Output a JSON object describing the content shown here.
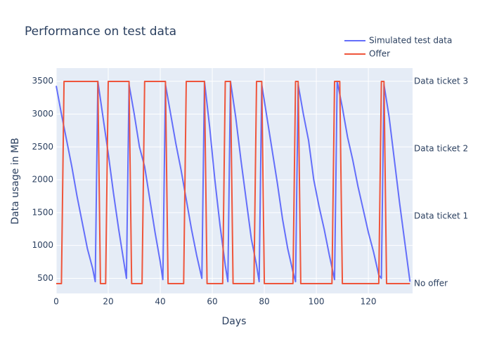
{
  "chart_data": {
    "type": "line",
    "title": "Performance on test data",
    "x_label": "Days",
    "y_label": "Data usage in MB",
    "xlim": [
      0,
      137
    ],
    "xticks": [
      0,
      20,
      40,
      60,
      80,
      100,
      120
    ],
    "ylim": [
      270,
      3700
    ],
    "yticks": [
      500,
      1000,
      1500,
      2000,
      2500,
      3000,
      3500
    ],
    "y2lim": [
      -0.146,
      3.198
    ],
    "y2ticks": [
      {
        "value": 0,
        "label": "No offer"
      },
      {
        "value": 1,
        "label": "Data ticket 1"
      },
      {
        "value": 2,
        "label": "Data ticket 2"
      },
      {
        "value": 3,
        "label": "Data ticket 3"
      }
    ],
    "grid": true,
    "legend": "top-right",
    "series": [
      {
        "name": "Simulated test data",
        "color": "#636efa",
        "x": [
          0,
          2,
          4,
          6,
          8,
          10,
          12,
          14,
          15,
          16,
          18,
          20,
          22,
          24,
          26,
          27,
          28,
          30,
          32,
          34,
          36,
          38,
          40,
          41,
          42,
          44,
          46,
          48,
          50,
          52,
          54,
          56,
          57,
          59,
          61,
          63,
          65,
          66,
          67,
          69,
          71,
          73,
          75,
          77,
          78,
          79,
          81,
          83,
          85,
          87,
          89,
          91,
          92,
          93,
          95,
          97,
          99,
          101,
          103,
          105,
          107,
          108,
          110,
          112,
          114,
          116,
          118,
          120,
          122,
          124,
          125,
          126,
          128,
          130,
          132,
          134,
          136
        ],
        "values": [
          3430,
          3000,
          2600,
          2200,
          1750,
          1350,
          950,
          650,
          450,
          3500,
          2950,
          2400,
          1800,
          1250,
          750,
          500,
          3450,
          3000,
          2500,
          2200,
          1700,
          1200,
          750,
          480,
          3450,
          3000,
          2550,
          2150,
          1700,
          1250,
          850,
          500,
          3500,
          2800,
          2000,
          1300,
          700,
          450,
          3500,
          2950,
          2300,
          1700,
          1100,
          700,
          450,
          3450,
          2950,
          2450,
          1950,
          1400,
          950,
          600,
          450,
          3450,
          3000,
          2600,
          2000,
          1600,
          1250,
          850,
          480,
          3500,
          3100,
          2650,
          2300,
          1900,
          1550,
          1200,
          900,
          550,
          500,
          3450,
          2950,
          2300,
          1650,
          1050,
          450
        ]
      },
      {
        "name": "Offer",
        "color": "#EF553B",
        "axis": "y2",
        "x": [
          0,
          2,
          3,
          16,
          17,
          19,
          20,
          28,
          29,
          33,
          34,
          42,
          43,
          49,
          50,
          57,
          58,
          64,
          65,
          67,
          68,
          76,
          77,
          79,
          80,
          91,
          92,
          93,
          94,
          106,
          107,
          109,
          110,
          124,
          125,
          126,
          127,
          136
        ],
        "values": [
          0,
          0,
          3,
          3,
          0,
          0,
          3,
          3,
          0,
          0,
          3,
          3,
          0,
          0,
          3,
          3,
          0,
          0,
          3,
          3,
          0,
          0,
          3,
          3,
          0,
          0,
          3,
          3,
          0,
          0,
          3,
          3,
          0,
          0,
          3,
          3,
          0,
          0
        ]
      }
    ]
  }
}
